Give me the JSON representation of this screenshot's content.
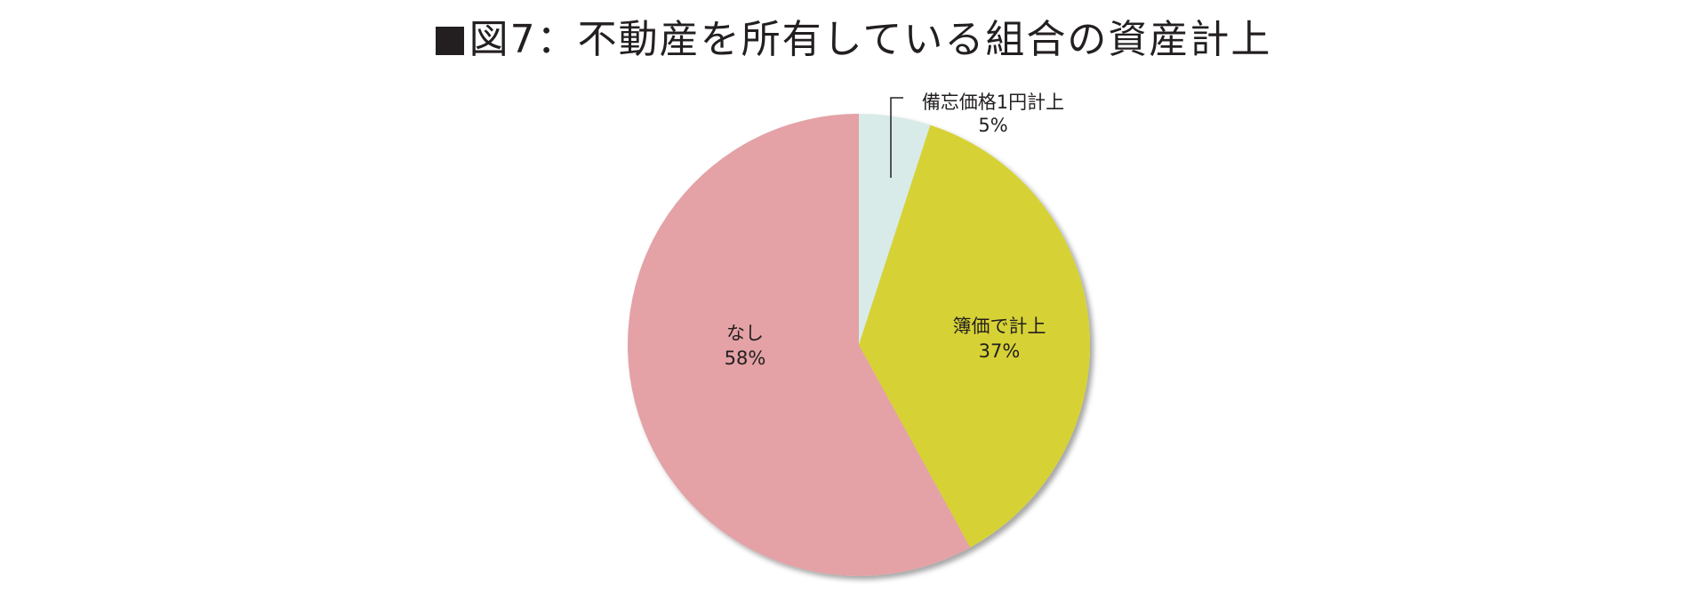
{
  "title": "図7：不動産を所有している組合の資産計上",
  "chart_data": {
    "type": "pie",
    "title": "図7：不動産を所有している組合の資産計上",
    "start_angle_deg": 0,
    "direction": "clockwise",
    "slices": [
      {
        "name": "備忘価格1円計上",
        "value": 5,
        "label": "5%",
        "color": "#d8ebe8"
      },
      {
        "name": "簿価で計上",
        "value": 37,
        "label": "37%",
        "color": "#d6d236"
      },
      {
        "name": "なし",
        "value": 58,
        "label": "58%",
        "color": "#e4a2a6"
      }
    ]
  }
}
